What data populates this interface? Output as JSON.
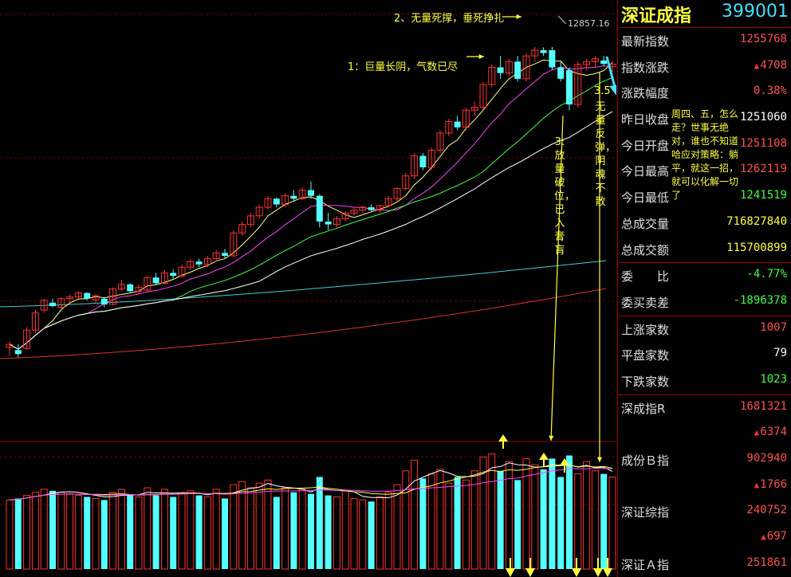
{
  "panel": {
    "index_name": "深证成指",
    "index_code": "399001",
    "rows": [
      {
        "label": "最新指数",
        "value": "1255768",
        "color": "red"
      },
      {
        "label": "指数涨跌",
        "value": "4708",
        "color": "red",
        "up": true
      },
      {
        "label": "涨跌幅度",
        "value": "0.38%",
        "color": "red"
      },
      {
        "label": "昨日收盘",
        "value": "1251060",
        "color": "white"
      },
      {
        "label": "今日开盘",
        "value": "1251108",
        "color": "red"
      },
      {
        "label": "今日最高",
        "value": "1262119",
        "color": "red"
      },
      {
        "label": "今日最低",
        "value": "1241519",
        "color": "green"
      },
      {
        "label": "总成交量",
        "value": "716827840",
        "color": "yellow"
      },
      {
        "label": "总成交额",
        "value": "115700899",
        "color": "yellow"
      },
      {
        "label": "委　　比",
        "value": "-4.77%",
        "color": "green",
        "sep": true
      },
      {
        "label": "委买卖差",
        "value": "-1896378",
        "color": "green"
      },
      {
        "label": "上涨家数",
        "value": "1007",
        "color": "red",
        "sep": true
      },
      {
        "label": "平盘家数",
        "value": "79",
        "color": "white"
      },
      {
        "label": "下跌家数",
        "value": "1023",
        "color": "green"
      },
      {
        "label": "深成指R",
        "value": "1681321",
        "color": "red",
        "sep": true
      },
      {
        "label": "",
        "value": "6374",
        "color": "red",
        "up": true
      },
      {
        "label": "成份Ｂ指",
        "value": "902940",
        "color": "red"
      },
      {
        "label": "",
        "value": "1766",
        "color": "red",
        "up": true
      },
      {
        "label": "深证综指",
        "value": "240752",
        "color": "red"
      },
      {
        "label": "",
        "value": "697",
        "color": "red",
        "up": true
      },
      {
        "label": "深证Ａ指",
        "value": "251861",
        "color": "red"
      }
    ]
  },
  "annotations": {
    "peak_label": "12857.16",
    "note1": "1：巨量长阴，气数已尽",
    "note2": "2、无量死撑，垂死挣扎",
    "note3": "3:放量破位，已入膏肓",
    "note35_num": "3.5",
    "note35": "无量反弹，阴魂不散",
    "strategy": "周四、五，怎么走？世事无绝对，谁也不知道哈应对策略：躺平，就这一招，就可以化解一切了"
  },
  "chart_data": {
    "type": "candlestick",
    "title": "",
    "ylim": [
      7400,
      13400
    ],
    "candles": [
      {
        "o": 7600,
        "h": 7700,
        "l": 7450,
        "c": 7650
      },
      {
        "o": 7550,
        "h": 7650,
        "l": 7420,
        "c": 7480
      },
      {
        "o": 7580,
        "h": 7950,
        "l": 7550,
        "c": 7900
      },
      {
        "o": 7900,
        "h": 8250,
        "l": 7850,
        "c": 8200
      },
      {
        "o": 8250,
        "h": 8450,
        "l": 8200,
        "c": 8420
      },
      {
        "o": 8380,
        "h": 8450,
        "l": 8300,
        "c": 8320
      },
      {
        "o": 8300,
        "h": 8480,
        "l": 8280,
        "c": 8450
      },
      {
        "o": 8450,
        "h": 8520,
        "l": 8380,
        "c": 8480
      },
      {
        "o": 8480,
        "h": 8580,
        "l": 8450,
        "c": 8550
      },
      {
        "o": 8550,
        "h": 8560,
        "l": 8420,
        "c": 8450
      },
      {
        "o": 8430,
        "h": 8530,
        "l": 8380,
        "c": 8500
      },
      {
        "o": 8450,
        "h": 8480,
        "l": 8300,
        "c": 8350
      },
      {
        "o": 8350,
        "h": 8650,
        "l": 8330,
        "c": 8620
      },
      {
        "o": 8620,
        "h": 8780,
        "l": 8580,
        "c": 8700
      },
      {
        "o": 8700,
        "h": 8720,
        "l": 8550,
        "c": 8580
      },
      {
        "o": 8580,
        "h": 8700,
        "l": 8520,
        "c": 8650
      },
      {
        "o": 8600,
        "h": 8850,
        "l": 8580,
        "c": 8820
      },
      {
        "o": 8820,
        "h": 8900,
        "l": 8700,
        "c": 8720
      },
      {
        "o": 8720,
        "h": 8950,
        "l": 8700,
        "c": 8900
      },
      {
        "o": 8900,
        "h": 8960,
        "l": 8800,
        "c": 8850
      },
      {
        "o": 8850,
        "h": 9050,
        "l": 8820,
        "c": 9000
      },
      {
        "o": 9000,
        "h": 9150,
        "l": 8950,
        "c": 9100
      },
      {
        "o": 9100,
        "h": 9150,
        "l": 9000,
        "c": 9050
      },
      {
        "o": 9050,
        "h": 9200,
        "l": 9000,
        "c": 9150
      },
      {
        "o": 9150,
        "h": 9300,
        "l": 9100,
        "c": 9250
      },
      {
        "o": 9250,
        "h": 9320,
        "l": 9150,
        "c": 9200
      },
      {
        "o": 9200,
        "h": 9650,
        "l": 9180,
        "c": 9600
      },
      {
        "o": 9600,
        "h": 9800,
        "l": 9550,
        "c": 9750
      },
      {
        "o": 9750,
        "h": 9950,
        "l": 9700,
        "c": 9900
      },
      {
        "o": 9900,
        "h": 10100,
        "l": 9850,
        "c": 10050
      },
      {
        "o": 10050,
        "h": 10250,
        "l": 10000,
        "c": 10200
      },
      {
        "o": 10200,
        "h": 10220,
        "l": 10050,
        "c": 10100
      },
      {
        "o": 10100,
        "h": 10300,
        "l": 10050,
        "c": 10250
      },
      {
        "o": 10250,
        "h": 10350,
        "l": 10150,
        "c": 10200
      },
      {
        "o": 10200,
        "h": 10400,
        "l": 10180,
        "c": 10350
      },
      {
        "o": 10350,
        "h": 10500,
        "l": 10200,
        "c": 10250
      },
      {
        "o": 10250,
        "h": 10280,
        "l": 9700,
        "c": 9800
      },
      {
        "o": 9800,
        "h": 9950,
        "l": 9650,
        "c": 9750
      },
      {
        "o": 9750,
        "h": 9900,
        "l": 9700,
        "c": 9850
      },
      {
        "o": 9850,
        "h": 9980,
        "l": 9800,
        "c": 9950
      },
      {
        "o": 9950,
        "h": 10050,
        "l": 9900,
        "c": 10000
      },
      {
        "o": 10000,
        "h": 10080,
        "l": 9950,
        "c": 10050
      },
      {
        "o": 10050,
        "h": 10100,
        "l": 9980,
        "c": 10000
      },
      {
        "o": 10000,
        "h": 10100,
        "l": 9950,
        "c": 10080
      },
      {
        "o": 10080,
        "h": 10250,
        "l": 10050,
        "c": 10200
      },
      {
        "o": 10200,
        "h": 10400,
        "l": 10150,
        "c": 10380
      },
      {
        "o": 10380,
        "h": 10650,
        "l": 10350,
        "c": 10600
      },
      {
        "o": 10600,
        "h": 11000,
        "l": 10550,
        "c": 10950
      },
      {
        "o": 10950,
        "h": 11000,
        "l": 10700,
        "c": 10750
      },
      {
        "o": 10750,
        "h": 11100,
        "l": 10700,
        "c": 11050
      },
      {
        "o": 11050,
        "h": 11400,
        "l": 11000,
        "c": 11350
      },
      {
        "o": 11350,
        "h": 11600,
        "l": 11300,
        "c": 11550
      },
      {
        "o": 11550,
        "h": 11650,
        "l": 11400,
        "c": 11450
      },
      {
        "o": 11450,
        "h": 11800,
        "l": 11400,
        "c": 11750
      },
      {
        "o": 11750,
        "h": 11900,
        "l": 11650,
        "c": 11800
      },
      {
        "o": 11800,
        "h": 12250,
        "l": 11750,
        "c": 12200
      },
      {
        "o": 12200,
        "h": 12550,
        "l": 12150,
        "c": 12500
      },
      {
        "o": 12500,
        "h": 12700,
        "l": 12300,
        "c": 12400
      },
      {
        "o": 12400,
        "h": 12650,
        "l": 12350,
        "c": 12600
      },
      {
        "o": 12600,
        "h": 12700,
        "l": 12250,
        "c": 12300
      },
      {
        "o": 12300,
        "h": 12750,
        "l": 12250,
        "c": 12700
      },
      {
        "o": 12700,
        "h": 12857,
        "l": 12600,
        "c": 12800
      },
      {
        "o": 12800,
        "h": 12850,
        "l": 12700,
        "c": 12750
      },
      {
        "o": 12800,
        "h": 12857,
        "l": 12450,
        "c": 12500
      },
      {
        "o": 12500,
        "h": 12600,
        "l": 12250,
        "c": 12300
      },
      {
        "o": 12450,
        "h": 12500,
        "l": 11750,
        "c": 11850
      },
      {
        "o": 11850,
        "h": 12600,
        "l": 11800,
        "c": 12550
      },
      {
        "o": 12550,
        "h": 12650,
        "l": 12450,
        "c": 12600
      },
      {
        "o": 12600,
        "h": 12700,
        "l": 12500,
        "c": 12650
      },
      {
        "o": 12620,
        "h": 12700,
        "l": 12520,
        "c": 12560
      },
      {
        "o": 12511,
        "h": 12621,
        "l": 12415,
        "c": 12557
      }
    ],
    "volume": [
      45,
      46,
      48,
      50,
      52,
      51,
      50,
      49,
      48,
      47,
      46,
      45,
      50,
      52,
      48,
      47,
      53,
      48,
      52,
      47,
      49,
      51,
      48,
      47,
      52,
      46,
      55,
      57,
      53,
      56,
      58,
      47,
      53,
      50,
      52,
      49,
      60,
      48,
      47,
      51,
      46,
      45,
      44,
      47,
      50,
      55,
      64,
      71,
      59,
      62,
      65,
      56,
      60,
      58,
      64,
      73,
      75,
      64,
      70,
      58,
      72,
      68,
      65,
      72,
      60,
      74,
      62,
      70,
      64,
      62,
      60
    ],
    "volume_colors": [
      "cyan-down-red-up"
    ]
  }
}
